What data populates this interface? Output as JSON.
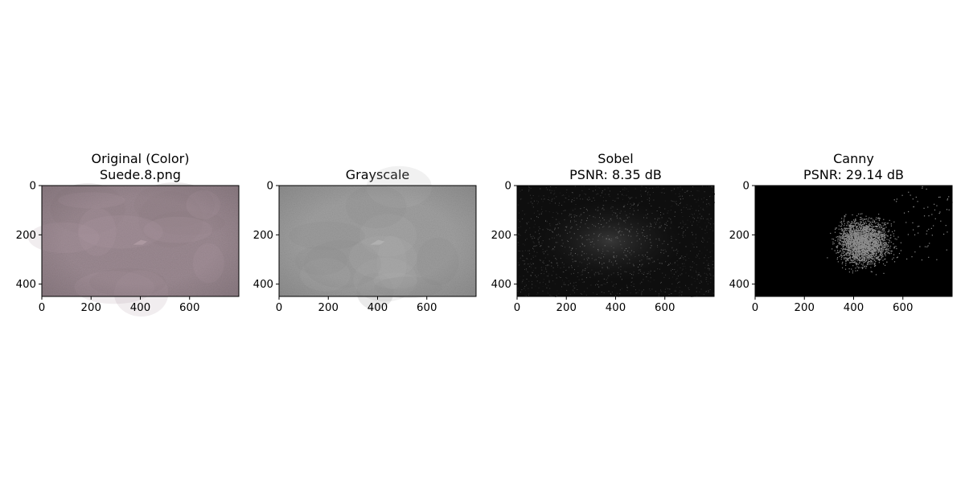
{
  "chart_data": [
    {
      "type": "image",
      "title_lines": [
        "Original (Color)",
        "Suede.8.png"
      ],
      "image_kind": "color",
      "colors": {
        "base": "#9c8a92",
        "dark": "#8a7880",
        "light": "#b09ca4"
      },
      "x_ticks": [
        0,
        200,
        400,
        600
      ],
      "y_ticks": [
        0,
        200,
        400
      ],
      "xlim": [
        0,
        800
      ],
      "ylim": [
        450,
        0
      ]
    },
    {
      "type": "image",
      "title_lines": [
        "Grayscale"
      ],
      "image_kind": "gray",
      "colors": {
        "base": "#a0a0a0",
        "dark": "#8a8a8a",
        "light": "#b4b4b4"
      },
      "x_ticks": [
        0,
        200,
        400,
        600
      ],
      "y_ticks": [
        0,
        200,
        400
      ],
      "xlim": [
        0,
        800
      ],
      "ylim": [
        450,
        0
      ]
    },
    {
      "type": "image",
      "title_lines": [
        "Sobel",
        "PSNR: 8.35 dB"
      ],
      "image_kind": "sobel",
      "colors": {
        "base": "#0e0e0e",
        "dark": "#000000",
        "light": "#5a5a5a"
      },
      "x_ticks": [
        0,
        200,
        400,
        600
      ],
      "y_ticks": [
        0,
        200,
        400
      ],
      "xlim": [
        0,
        800
      ],
      "ylim": [
        450,
        0
      ]
    },
    {
      "type": "image",
      "title_lines": [
        "Canny",
        "PSNR: 29.14 dB"
      ],
      "image_kind": "canny",
      "colors": {
        "base": "#000000",
        "dark": "#000000",
        "light": "#8c8c8c"
      },
      "x_ticks": [
        0,
        200,
        400,
        600
      ],
      "y_ticks": [
        0,
        200,
        400
      ],
      "xlim": [
        0,
        800
      ],
      "ylim": [
        450,
        0
      ]
    }
  ]
}
